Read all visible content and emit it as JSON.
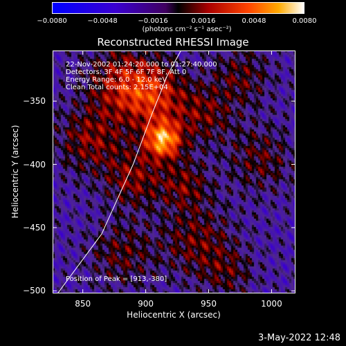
{
  "chart_data": {
    "type": "heatmap",
    "title": "Reconstructed RHESSI Image",
    "xlabel": "Heliocentric X (arcsec)",
    "ylabel": "Heliocentric Y (arcsec)",
    "xlim": [
      826,
      1019
    ],
    "ylim": [
      -502,
      -310
    ],
    "x_ticks": [
      850,
      900,
      950,
      1000
    ],
    "x_tick_labels": [
      "850",
      "900",
      "950",
      "1000"
    ],
    "y_ticks": [
      -350,
      -400,
      -450,
      -500
    ],
    "y_tick_labels": [
      "−350",
      "−400",
      "−450",
      "−500"
    ],
    "colorbar": {
      "ticks": [
        -0.008,
        -0.0048,
        -0.0016,
        0.0016,
        0.0048,
        0.008
      ],
      "tick_labels": [
        "−0.0080",
        "−0.0048",
        "−0.0016",
        "0.0016",
        "0.0048",
        "0.0080"
      ],
      "range": [
        -0.008,
        0.008
      ],
      "units": "(photons cm⁻² s⁻¹ asec⁻²)"
    },
    "annotations": {
      "time_range": "22-Nov-2002 01:24:20.000 to 01:27:40.000",
      "detectors": "Detectors: 3F 4F 5F 6F 7F 8F, Att 0",
      "energy": "Energy Range: 6.0 - 12.0 keV",
      "clean": "Clean     Total counts: 2.15E+04",
      "peak": "Position of Peak = [913,-380]"
    },
    "peak": {
      "x": 913,
      "y": -380
    },
    "sources": [
      {
        "x": 913,
        "y": -380,
        "sigma": 10,
        "amp": 1.0
      },
      {
        "x": 905,
        "y": -345,
        "sigma": 18,
        "amp": 0.55
      },
      {
        "x": 880,
        "y": -335,
        "sigma": 20,
        "amp": 0.45
      },
      {
        "x": 855,
        "y": -380,
        "sigma": 18,
        "amp": 0.4
      },
      {
        "x": 890,
        "y": -410,
        "sigma": 16,
        "amp": 0.4
      },
      {
        "x": 930,
        "y": -415,
        "sigma": 14,
        "amp": 0.35
      },
      {
        "x": 945,
        "y": -360,
        "sigma": 16,
        "amp": 0.35
      },
      {
        "x": 975,
        "y": -330,
        "sigma": 16,
        "amp": 0.3
      },
      {
        "x": 990,
        "y": -395,
        "sigma": 18,
        "amp": 0.3
      },
      {
        "x": 940,
        "y": -460,
        "sigma": 20,
        "amp": 0.35
      },
      {
        "x": 880,
        "y": -470,
        "sigma": 18,
        "amp": 0.3
      },
      {
        "x": 965,
        "y": -485,
        "sigma": 14,
        "amp": 0.25
      }
    ],
    "limb_curve": [
      [
        830,
        -502
      ],
      [
        865,
        -455
      ],
      [
        890,
        -400
      ],
      [
        905,
        -360
      ],
      [
        917,
        -330
      ],
      [
        928,
        -310
      ]
    ]
  },
  "date_stamp": "3-May-2022 12:48"
}
